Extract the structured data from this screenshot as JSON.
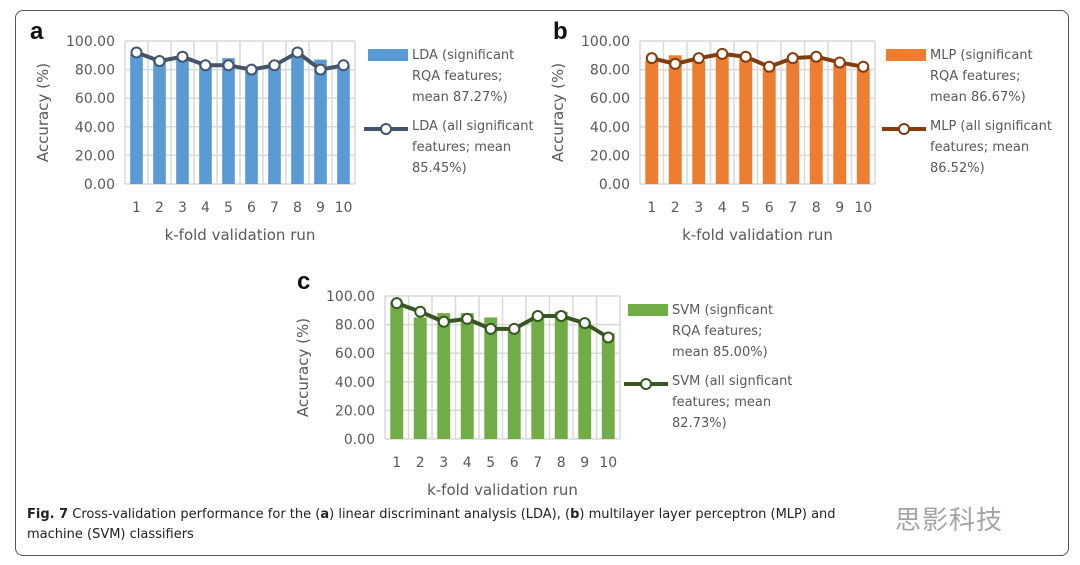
{
  "figure": {
    "caption_label": "Fig. 7",
    "caption_text_1": " Cross-validation performance for the (",
    "caption_a": "a",
    "caption_text_2": ") linear discriminant analysis (LDA), (",
    "caption_b": "b",
    "caption_text_3": ") multilayer layer perceptron (MLP) and",
    "caption_line2": "machine (SVM) classifiers",
    "watermark": "思影科技"
  },
  "colors": {
    "lda_bar": "#5b9bd5",
    "lda_line": "#44546a",
    "mlp_bar": "#ed7d31",
    "mlp_line": "#843c0c",
    "svm_bar": "#70ad47",
    "svm_line": "#375623",
    "grid": "#d9d9d9"
  },
  "chart_data": [
    {
      "panel": "a",
      "type": "bar",
      "title": "",
      "xlabel": "k-fold validation run",
      "ylabel": "Accuracy (%)",
      "ylim": [
        0,
        100
      ],
      "yticks": [
        "0.00",
        "20.00",
        "40.00",
        "60.00",
        "80.00",
        "100.00"
      ],
      "categories": [
        "1",
        "2",
        "3",
        "4",
        "5",
        "6",
        "7",
        "8",
        "9",
        "10"
      ],
      "grid": true,
      "legend_position": "right",
      "series": [
        {
          "name": "LDA (significant RQA features; mean 87.27%)",
          "kind": "bar",
          "legend_lines": [
            "LDA (significant",
            "RQA features;",
            "mean 87.27%)"
          ],
          "values": [
            91,
            88,
            88,
            84,
            88,
            82,
            85,
            91,
            87,
            83
          ]
        },
        {
          "name": "LDA (all significant features; mean 85.45%)",
          "kind": "line",
          "legend_lines": [
            "LDA (all significant",
            "features; mean",
            "85.45%)"
          ],
          "values": [
            92,
            86,
            89,
            83,
            83,
            80,
            83,
            92,
            80,
            83
          ]
        }
      ]
    },
    {
      "panel": "b",
      "type": "bar",
      "title": "",
      "xlabel": "k-fold validation run",
      "ylabel": "Accuracy (%)",
      "ylim": [
        0,
        100
      ],
      "yticks": [
        "0.00",
        "20.00",
        "40.00",
        "60.00",
        "80.00",
        "100.00"
      ],
      "categories": [
        "1",
        "2",
        "3",
        "4",
        "5",
        "6",
        "7",
        "8",
        "9",
        "10"
      ],
      "grid": true,
      "legend_position": "right",
      "series": [
        {
          "name": "MLP (significant RQA features; mean 86.67%)",
          "kind": "bar",
          "legend_lines": [
            "MLP (significant",
            "RQA features;",
            "mean 86.67%)"
          ],
          "values": [
            86,
            90,
            86,
            90,
            88,
            82,
            86,
            88,
            84,
            81
          ]
        },
        {
          "name": "MLP (all significant features; mean 86.52%)",
          "kind": "line",
          "legend_lines": [
            "MLP (all significant",
            "features; mean",
            "86.52%)"
          ],
          "values": [
            88,
            84,
            88,
            91,
            89,
            82,
            88,
            89,
            85,
            82
          ]
        }
      ]
    },
    {
      "panel": "c",
      "type": "bar",
      "title": "",
      "xlabel": "k-fold validation run",
      "ylabel": "Accuracy (%)",
      "ylim": [
        0,
        100
      ],
      "yticks": [
        "0.00",
        "20.00",
        "40.00",
        "60.00",
        "80.00",
        "100.00"
      ],
      "categories": [
        "1",
        "2",
        "3",
        "4",
        "5",
        "6",
        "7",
        "8",
        "9",
        "10"
      ],
      "grid": true,
      "legend_position": "right",
      "series": [
        {
          "name": "SVM (signficant RQA features; mean 85.00%)",
          "kind": "bar",
          "legend_lines": [
            "SVM (signficant",
            "RQA features;",
            "mean 85.00%)"
          ],
          "values": [
            96,
            85,
            88,
            88,
            85,
            77,
            86,
            89,
            82,
            74
          ]
        },
        {
          "name": "SVM (all signficant features; mean 82.73%)",
          "kind": "line",
          "legend_lines": [
            "SVM (all signficant",
            "features; mean",
            "82.73%)"
          ],
          "values": [
            95,
            89,
            82,
            84,
            77,
            77,
            86,
            86,
            81,
            71
          ]
        }
      ]
    }
  ]
}
